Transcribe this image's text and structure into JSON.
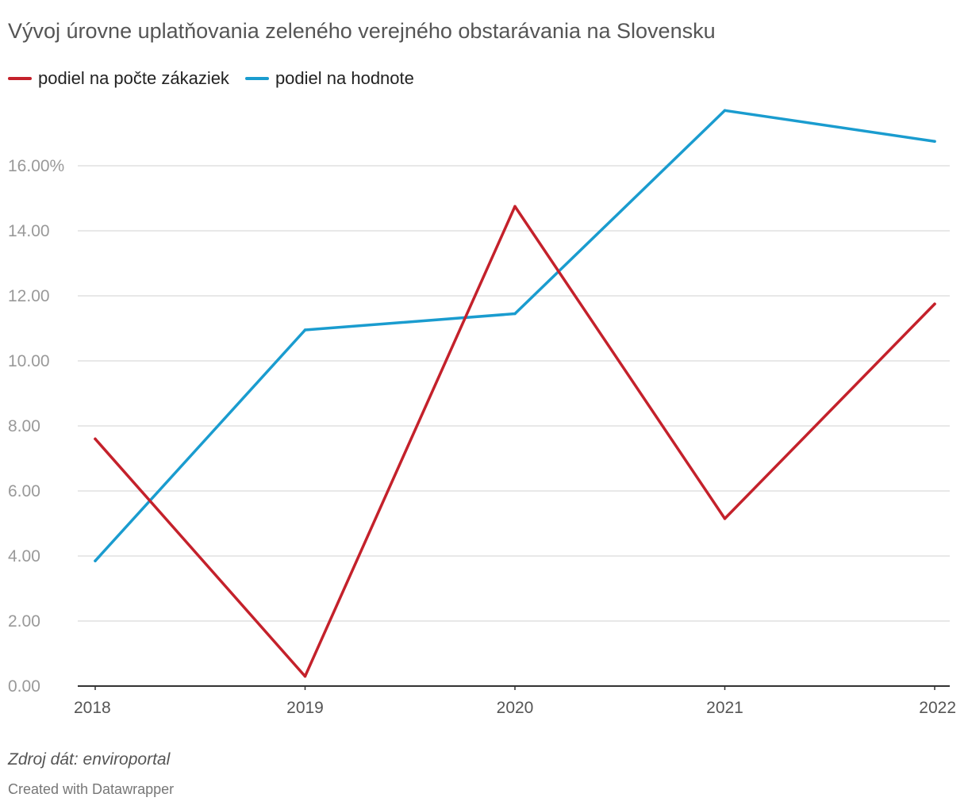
{
  "chart_data": {
    "type": "line",
    "title": "Vývoj úrovne uplatňovania zeleného verejného obstarávania na Slovensku",
    "x": [
      "2018",
      "2019",
      "2020",
      "2021",
      "2022"
    ],
    "series": [
      {
        "name": "podiel na počte zákaziek",
        "color": "#c4212b",
        "values": [
          7.6,
          0.3,
          14.75,
          5.15,
          11.75
        ]
      },
      {
        "name": "podiel na hodnote",
        "color": "#1a9ccf",
        "values": [
          3.85,
          10.95,
          11.45,
          17.7,
          16.75
        ]
      }
    ],
    "yticks": [
      "0.00",
      "2.00",
      "4.00",
      "6.00",
      "8.00",
      "10.00",
      "12.00",
      "14.00",
      "16.00%"
    ],
    "ytick_values": [
      0,
      2,
      4,
      6,
      8,
      10,
      12,
      14,
      16
    ],
    "ylim": [
      0,
      18
    ],
    "grid": true,
    "legend": "top-left"
  },
  "source_label": "Zdroj dát: enviroportal",
  "credit_label": "Created with Datawrapper"
}
